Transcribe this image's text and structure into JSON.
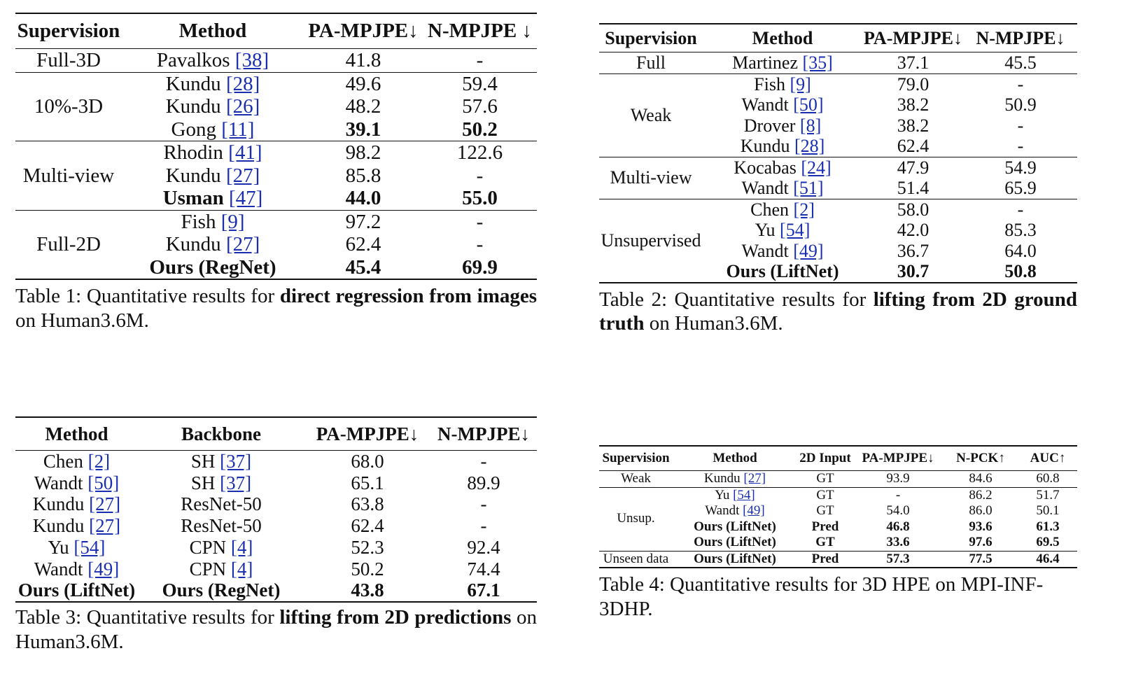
{
  "table1": {
    "headers": [
      "Supervision",
      "Method",
      "PA-MPJPE↓",
      "N-MPJPE ↓"
    ],
    "groups": [
      {
        "supervision": "Full-3D",
        "rows": [
          {
            "method": "Pavalkos",
            "ref": "[38]",
            "pa": "41.8",
            "n": "-",
            "bold": false
          }
        ]
      },
      {
        "supervision": "10%-3D",
        "rows": [
          {
            "method": "Kundu",
            "ref": "[28]",
            "pa": "49.6",
            "n": "59.4",
            "bold": false
          },
          {
            "method": "Kundu",
            "ref": "[26]",
            "pa": "48.2",
            "n": "57.6",
            "bold": false
          },
          {
            "method": "Gong",
            "ref": "[11]",
            "pa": "39.1",
            "n": "50.2",
            "bold": true,
            "boldMethod": false
          }
        ]
      },
      {
        "supervision": "Multi-view",
        "rows": [
          {
            "method": "Rhodin",
            "ref": "[41]",
            "pa": "98.2",
            "n": "122.6",
            "bold": false
          },
          {
            "method": "Kundu",
            "ref": "[27]",
            "pa": "85.8",
            "n": "-",
            "bold": false
          },
          {
            "method": "Usman",
            "ref": "[47]",
            "pa": "44.0",
            "n": "55.0",
            "bold": true,
            "boldMethod": true
          }
        ]
      },
      {
        "supervision": "Full-2D",
        "rows": [
          {
            "method": "Fish",
            "ref": "[9]",
            "pa": "97.2",
            "n": "-",
            "bold": false
          },
          {
            "method": "Kundu",
            "ref": "[27]",
            "pa": "62.4",
            "n": "-",
            "bold": false
          },
          {
            "method": "Ours (RegNet)",
            "ref": "",
            "pa": "45.4",
            "n": "69.9",
            "bold": true,
            "boldMethod": true
          }
        ]
      }
    ],
    "caption": {
      "prefix": "Table 1: Quantitative results for ",
      "bold": "direct regression from images",
      "suffix": " on Human3.6M."
    }
  },
  "table2": {
    "headers": [
      "Supervision",
      "Method",
      "PA-MPJPE↓",
      "N-MPJPE↓"
    ],
    "groups": [
      {
        "supervision": "Full",
        "rows": [
          {
            "method": "Martinez",
            "ref": "[35]",
            "pa": "37.1",
            "n": "45.5",
            "bold": false
          }
        ]
      },
      {
        "supervision": "Weak",
        "rows": [
          {
            "method": "Fish",
            "ref": "[9]",
            "pa": "79.0",
            "n": "-",
            "bold": false
          },
          {
            "method": "Wandt",
            "ref": "[50]",
            "pa": "38.2",
            "n": "50.9",
            "bold": false
          },
          {
            "method": "Drover",
            "ref": "[8]",
            "pa": "38.2",
            "n": "-",
            "bold": false
          },
          {
            "method": "Kundu",
            "ref": "[28]",
            "pa": "62.4",
            "n": "-",
            "bold": false
          }
        ]
      },
      {
        "supervision": "Multi-view",
        "rows": [
          {
            "method": "Kocabas",
            "ref": "[24]",
            "pa": "47.9",
            "n": "54.9",
            "bold": false
          },
          {
            "method": "Wandt",
            "ref": "[51]",
            "pa": "51.4",
            "n": "65.9",
            "bold": false
          }
        ]
      },
      {
        "supervision": "Unsupervised",
        "rows": [
          {
            "method": "Chen",
            "ref": "[2]",
            "pa": "58.0",
            "n": "-",
            "bold": false
          },
          {
            "method": "Yu",
            "ref": "[54]",
            "pa": "42.0",
            "n": "85.3",
            "bold": false
          },
          {
            "method": "Wandt",
            "ref": "[49]",
            "pa": "36.7",
            "n": "64.0",
            "bold": false
          },
          {
            "method": "Ours (LiftNet)",
            "ref": "",
            "pa": "30.7",
            "n": "50.8",
            "bold": true,
            "boldMethod": true
          }
        ]
      }
    ],
    "caption": {
      "prefix": "Table 2: Quantitative results for ",
      "bold": "lifting from 2D ground truth",
      "suffix": " on Human3.6M."
    }
  },
  "table3": {
    "headers": [
      "Method",
      "Backbone",
      "PA-MPJPE↓",
      "N-MPJPE↓"
    ],
    "rows": [
      {
        "method": "Chen",
        "ref": "[2]",
        "backbone": "SH",
        "bref": "[37]",
        "pa": "68.0",
        "n": "-",
        "bold": false
      },
      {
        "method": "Wandt",
        "ref": "[50]",
        "backbone": "SH",
        "bref": "[37]",
        "pa": "65.1",
        "n": "89.9",
        "bold": false
      },
      {
        "method": "Kundu",
        "ref": "[27]",
        "backbone": "ResNet-50",
        "bref": "",
        "pa": "63.8",
        "n": "-",
        "bold": false
      },
      {
        "method": "Kundu",
        "ref": "[27]",
        "backbone": "ResNet-50",
        "bref": "",
        "pa": "62.4",
        "n": "-",
        "bold": false
      },
      {
        "method": "Yu",
        "ref": "[54]",
        "backbone": "CPN",
        "bref": "[4]",
        "pa": "52.3",
        "n": "92.4",
        "bold": false
      },
      {
        "method": "Wandt",
        "ref": "[49]",
        "backbone": "CPN",
        "bref": "[4]",
        "pa": "50.2",
        "n": "74.4",
        "bold": false
      },
      {
        "method": "Ours (LiftNet)",
        "ref": "",
        "backbone": "Ours (RegNet)",
        "bref": "",
        "pa": "43.8",
        "n": "67.1",
        "bold": true
      }
    ],
    "caption": {
      "prefix": "Table 3: Quantitative results for ",
      "bold": "lifting from 2D predictions",
      "suffix": " on Human3.6M."
    }
  },
  "table4": {
    "headers": [
      "Supervision",
      "Method",
      "2D Input",
      "PA-MPJPE↓",
      "N-PCK↑",
      "AUC↑"
    ],
    "groups": [
      {
        "supervision": "Weak",
        "rows": [
          {
            "method": "Kundu",
            "ref": "[27]",
            "input": "GT",
            "pa": "93.9",
            "npck": "84.6",
            "auc": "60.8",
            "bold": false
          }
        ]
      },
      {
        "supervision": "Unsup.",
        "rows": [
          {
            "method": "Yu",
            "ref": "[54]",
            "input": "GT",
            "pa": "-",
            "npck": "86.2",
            "auc": "51.7",
            "bold": false
          },
          {
            "method": "Wandt",
            "ref": "[49]",
            "input": "GT",
            "pa": "54.0",
            "npck": "86.0",
            "auc": "50.1",
            "bold": false
          },
          {
            "method": "Ours (LiftNet)",
            "ref": "",
            "input": "Pred",
            "pa": "46.8",
            "npck": "93.6",
            "auc": "61.3",
            "bold": true
          },
          {
            "method": "Ours (LiftNet)",
            "ref": "",
            "input": "GT",
            "pa": "33.6",
            "npck": "97.6",
            "auc": "69.5",
            "bold": true
          }
        ]
      },
      {
        "supervision": "Unseen data",
        "rows": [
          {
            "method": "Ours (LiftNet)",
            "ref": "",
            "input": "Pred",
            "pa": "57.3",
            "npck": "77.5",
            "auc": "46.4",
            "bold": true
          }
        ]
      }
    ],
    "caption": {
      "text": "Table 4: Quantitative results for 3D HPE on MPI-INF-3DHP."
    }
  }
}
